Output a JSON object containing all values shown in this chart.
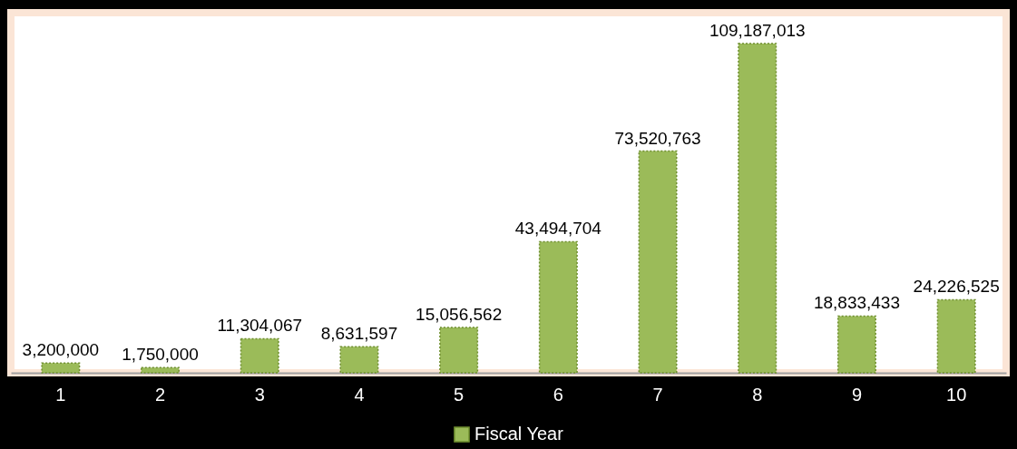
{
  "chart_data": {
    "type": "bar",
    "categories": [
      "1",
      "2",
      "3",
      "4",
      "5",
      "6",
      "7",
      "8",
      "9",
      "10"
    ],
    "series": [
      {
        "name": "Fiscal Year",
        "color": "#9bbb59",
        "values": [
          3200000,
          1750000,
          11304067,
          8631597,
          15056562,
          43494704,
          73520763,
          109187013,
          18833433,
          24226525
        ],
        "value_labels": [
          "3,200,000",
          "1,750,000",
          "11,304,067",
          "8,631,597",
          "15,056,562",
          "43,494,704",
          "73,520,763",
          "109,187,013",
          "18,833,433",
          "24,226,525"
        ]
      }
    ],
    "legend": "bottom",
    "grid": false,
    "tick_labels": "x"
  }
}
